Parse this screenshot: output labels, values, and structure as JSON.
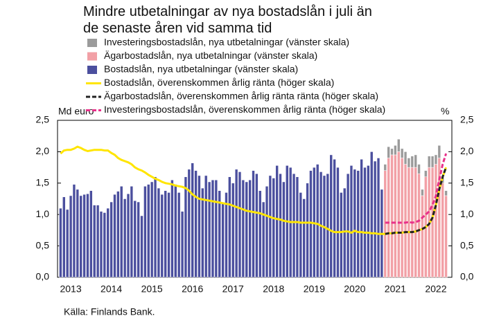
{
  "chart_data": {
    "type": "bar",
    "title": "Mindre utbetalningar av nya bostadslån i juli än de senaste åren vid samma tid",
    "y_label": "Md euro",
    "y2_label": "%",
    "source": "Källa: Finlands Bank.",
    "categories": [
      null,
      null,
      null,
      "2013",
      null,
      null,
      null,
      null,
      null,
      null,
      null,
      null,
      null,
      null,
      null,
      "2014",
      null,
      null,
      null,
      null,
      null,
      null,
      null,
      null,
      null,
      null,
      null,
      "2015",
      null,
      null,
      null,
      null,
      null,
      null,
      null,
      null,
      null,
      null,
      null,
      "2016",
      null,
      null,
      null,
      null,
      null,
      null,
      null,
      null,
      null,
      null,
      null,
      "2017",
      null,
      null,
      null,
      null,
      null,
      null,
      null,
      null,
      null,
      null,
      null,
      "2018",
      null,
      null,
      null,
      null,
      null,
      null,
      null,
      null,
      null,
      null,
      null,
      "2019",
      null,
      null,
      null,
      null,
      null,
      null,
      null,
      null,
      null,
      null,
      null,
      "2020",
      null,
      null,
      null,
      null,
      null,
      null,
      null,
      null,
      null,
      null,
      null,
      "2021",
      null,
      null,
      null,
      null,
      null,
      null,
      null,
      null,
      null,
      null,
      null,
      "2022",
      null,
      null,
      null
    ],
    "ylim": [
      0,
      2.5
    ],
    "yticks": [
      {
        "value": 0,
        "label": "0,0"
      },
      {
        "value": 0.5,
        "label": "0,5"
      },
      {
        "value": 1,
        "label": "1,0"
      },
      {
        "value": 1.5,
        "label": "1,5"
      },
      {
        "value": 2,
        "label": "2,0"
      },
      {
        "value": 2.5,
        "label": "2,5"
      }
    ],
    "y2lim": [
      0,
      2.5
    ],
    "y2ticks": [
      {
        "value": 0,
        "label": "0,0"
      },
      {
        "value": 0.5,
        "label": "0,5"
      },
      {
        "value": 1,
        "label": "1,0"
      },
      {
        "value": 1.5,
        "label": "1,5"
      },
      {
        "value": 2,
        "label": "2,0"
      },
      {
        "value": 2.5,
        "label": "2,5"
      }
    ],
    "series": [
      {
        "name": "Bostadslån, nya utbetalningar (vänster skala)",
        "kind": "bar",
        "color": "#4b4f9e",
        "values": [
          1.1,
          1.28,
          1.08,
          1.3,
          1.48,
          1.4,
          1.3,
          1.32,
          1.33,
          1.38,
          1.15,
          1.15,
          1.05,
          1.03,
          1.1,
          1.2,
          1.32,
          1.37,
          1.45,
          1.25,
          1.33,
          1.45,
          1.22,
          1.2,
          0.98,
          1.45,
          1.48,
          1.52,
          1.6,
          1.42,
          1.32,
          1.38,
          1.35,
          1.55,
          1.48,
          1.35,
          1.05,
          1.6,
          1.72,
          1.82,
          1.7,
          1.62,
          1.42,
          1.62,
          1.52,
          1.55,
          1.55,
          1.38,
          1.18,
          1.35,
          1.6,
          1.5,
          1.72,
          1.68,
          1.55,
          1.52,
          1.55,
          1.7,
          1.65,
          1.38,
          1.2,
          1.45,
          1.62,
          1.58,
          1.78,
          1.65,
          1.52,
          1.78,
          1.75,
          1.65,
          1.6,
          1.35,
          1.25,
          1.5,
          1.7,
          1.75,
          1.8,
          1.68,
          1.62,
          1.65,
          1.95,
          1.88,
          1.75,
          1.35,
          1.42,
          1.65,
          1.78,
          1.72,
          1.7,
          1.88,
          1.75,
          1.78,
          2.0,
          1.85,
          1.9,
          1.4,
          null,
          null,
          null,
          null,
          null,
          null,
          null,
          null,
          null,
          null,
          null,
          null,
          null,
          null,
          null,
          null,
          null,
          null,
          null
        ]
      },
      {
        "name": "Ägarbostadslån, nya utbetalningar (vänster skala)",
        "kind": "bar",
        "color": "#f2a0a6",
        "values": [
          null,
          null,
          null,
          null,
          null,
          null,
          null,
          null,
          null,
          null,
          null,
          null,
          null,
          null,
          null,
          null,
          null,
          null,
          null,
          null,
          null,
          null,
          null,
          null,
          null,
          null,
          null,
          null,
          null,
          null,
          null,
          null,
          null,
          null,
          null,
          null,
          null,
          null,
          null,
          null,
          null,
          null,
          null,
          null,
          null,
          null,
          null,
          null,
          null,
          null,
          null,
          null,
          null,
          null,
          null,
          null,
          null,
          null,
          null,
          null,
          null,
          null,
          null,
          null,
          null,
          null,
          null,
          null,
          null,
          null,
          null,
          null,
          null,
          null,
          null,
          null,
          null,
          null,
          null,
          null,
          null,
          null,
          null,
          null,
          null,
          null,
          null,
          null,
          null,
          null,
          null,
          null,
          null,
          null,
          null,
          null,
          1.7,
          1.9,
          1.95,
          1.95,
          2.0,
          1.9,
          1.8,
          1.75,
          1.75,
          1.75,
          1.65,
          1.3,
          1.6,
          1.75,
          1.75,
          1.8,
          1.9,
          1.5,
          1.3
        ]
      },
      {
        "name": "Investeringsbostadslån, nya utbetalningar (vänster skala)",
        "kind": "bar",
        "color": "#9b9b9b",
        "values": [
          null,
          null,
          null,
          null,
          null,
          null,
          null,
          null,
          null,
          null,
          null,
          null,
          null,
          null,
          null,
          null,
          null,
          null,
          null,
          null,
          null,
          null,
          null,
          null,
          null,
          null,
          null,
          null,
          null,
          null,
          null,
          null,
          null,
          null,
          null,
          null,
          null,
          null,
          null,
          null,
          null,
          null,
          null,
          null,
          null,
          null,
          null,
          null,
          null,
          null,
          null,
          null,
          null,
          null,
          null,
          null,
          null,
          null,
          null,
          null,
          null,
          null,
          null,
          null,
          null,
          null,
          null,
          null,
          null,
          null,
          null,
          null,
          null,
          null,
          null,
          null,
          null,
          null,
          null,
          null,
          null,
          null,
          null,
          null,
          null,
          null,
          null,
          null,
          null,
          null,
          null,
          null,
          null,
          null,
          null,
          null,
          0.1,
          0.18,
          0.1,
          0.15,
          0.2,
          0.15,
          0.2,
          0.15,
          0.18,
          0.2,
          0.15,
          0.1,
          0.1,
          0.18,
          0.18,
          0.15,
          0.2,
          0.1,
          0.08
        ]
      },
      {
        "name": "Bostadslån, överenskommen årlig ränta (höger skala)",
        "kind": "line",
        "axis": "y2",
        "color": "#ffe500",
        "dash": false,
        "values": [
          1.97,
          2.02,
          2.03,
          2.03,
          2.05,
          2.08,
          2.06,
          2.03,
          2.01,
          2.02,
          2.03,
          2.03,
          2.03,
          2.02,
          2.02,
          1.98,
          1.95,
          1.9,
          1.87,
          1.85,
          1.83,
          1.8,
          1.75,
          1.72,
          1.7,
          1.67,
          1.63,
          1.6,
          1.57,
          1.55,
          1.52,
          1.5,
          1.49,
          1.48,
          1.46,
          1.45,
          1.44,
          1.42,
          1.38,
          1.32,
          1.28,
          1.25,
          1.24,
          1.23,
          1.22,
          1.21,
          1.2,
          1.19,
          1.18,
          1.17,
          1.16,
          1.14,
          1.12,
          1.1,
          1.08,
          1.06,
          1.05,
          1.04,
          1.03,
          1.02,
          1.0,
          0.98,
          0.96,
          0.94,
          0.93,
          0.92,
          0.9,
          0.89,
          0.88,
          0.88,
          0.88,
          0.87,
          0.87,
          0.87,
          0.87,
          0.86,
          0.85,
          0.82,
          0.8,
          0.77,
          0.74,
          0.72,
          0.72,
          0.72,
          0.73,
          0.73,
          0.71,
          0.74,
          0.72,
          0.72,
          0.71,
          0.71,
          0.7,
          0.7,
          0.69,
          0.69,
          0.69,
          0.7,
          0.7,
          0.71,
          0.71,
          0.71,
          0.72,
          0.72,
          0.72,
          0.73,
          0.75,
          0.77,
          0.8,
          0.85,
          0.95,
          1.15,
          1.4,
          1.6,
          1.75
        ]
      },
      {
        "name": "Ägarbostadslån, överenskommen årlig ränta ränta (höger skala)",
        "kind": "line",
        "axis": "y2",
        "color": "#222222",
        "dash": true,
        "values": [
          null,
          null,
          null,
          null,
          null,
          null,
          null,
          null,
          null,
          null,
          null,
          null,
          null,
          null,
          null,
          null,
          null,
          null,
          null,
          null,
          null,
          null,
          null,
          null,
          null,
          null,
          null,
          null,
          null,
          null,
          null,
          null,
          null,
          null,
          null,
          null,
          null,
          null,
          null,
          null,
          null,
          null,
          null,
          null,
          null,
          null,
          null,
          null,
          null,
          null,
          null,
          null,
          null,
          null,
          null,
          null,
          null,
          null,
          null,
          null,
          null,
          null,
          null,
          null,
          null,
          null,
          null,
          null,
          null,
          null,
          null,
          null,
          null,
          null,
          null,
          null,
          null,
          null,
          null,
          null,
          null,
          null,
          null,
          null,
          null,
          null,
          null,
          null,
          null,
          null,
          null,
          null,
          null,
          null,
          null,
          null,
          0.69,
          0.7,
          0.7,
          0.71,
          0.71,
          0.71,
          0.72,
          0.72,
          0.72,
          0.73,
          0.75,
          0.77,
          0.8,
          0.85,
          0.95,
          1.15,
          1.4,
          1.6,
          1.75
        ]
      },
      {
        "name": "Investeringsbostadslån, överenskommen årlig ränta (höger skala)",
        "kind": "line",
        "axis": "y2",
        "color": "#e8308a",
        "dash": true,
        "values": [
          null,
          null,
          null,
          null,
          null,
          null,
          null,
          null,
          null,
          null,
          null,
          null,
          null,
          null,
          null,
          null,
          null,
          null,
          null,
          null,
          null,
          null,
          null,
          null,
          null,
          null,
          null,
          null,
          null,
          null,
          null,
          null,
          null,
          null,
          null,
          null,
          null,
          null,
          null,
          null,
          null,
          null,
          null,
          null,
          null,
          null,
          null,
          null,
          null,
          null,
          null,
          null,
          null,
          null,
          null,
          null,
          null,
          null,
          null,
          null,
          null,
          null,
          null,
          null,
          null,
          null,
          null,
          null,
          null,
          null,
          null,
          null,
          null,
          null,
          null,
          null,
          null,
          null,
          null,
          null,
          null,
          null,
          null,
          null,
          null,
          null,
          null,
          null,
          null,
          null,
          null,
          null,
          null,
          null,
          null,
          null,
          0.87,
          0.87,
          0.87,
          0.87,
          0.87,
          0.87,
          0.87,
          0.88,
          0.87,
          0.88,
          0.9,
          0.95,
          1.0,
          1.05,
          1.15,
          1.3,
          1.55,
          1.8,
          1.97
        ]
      }
    ]
  }
}
